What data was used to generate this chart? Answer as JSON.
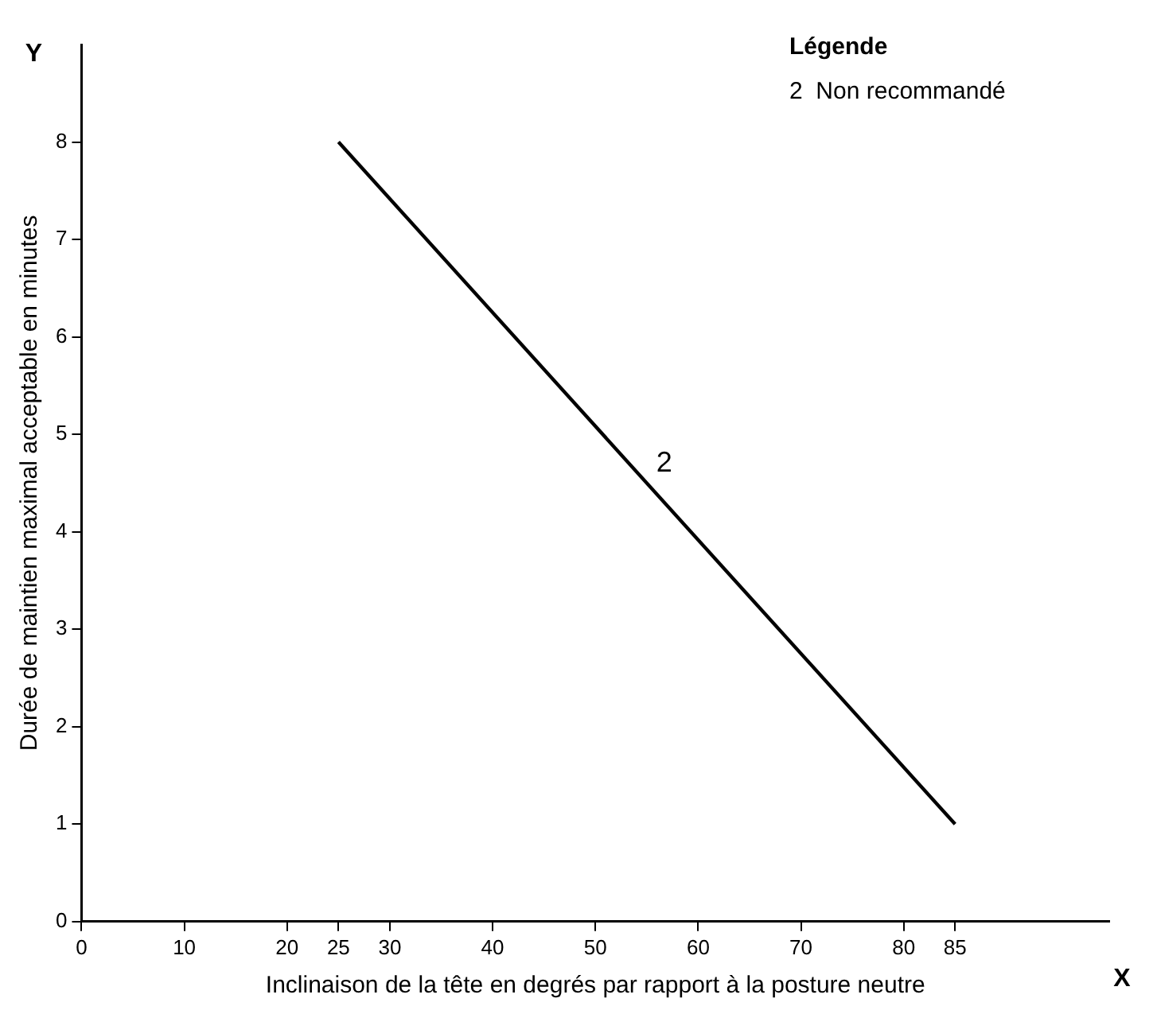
{
  "chart_data": {
    "type": "line",
    "xlabel": "Inclinaison de la tête en degrés par rapport à la posture neutre",
    "ylabel": "Durée de maintien maximal acceptable en minutes",
    "series": [
      {
        "name": "2",
        "color": "#000000",
        "x": [
          25,
          85
        ],
        "values": [
          8,
          1
        ]
      }
    ],
    "xlim": [
      0,
      100
    ],
    "xticks": [
      0,
      10,
      20,
      25,
      30,
      40,
      50,
      60,
      70,
      80,
      85
    ],
    "ylim": [
      0,
      9
    ],
    "yticks": [
      0,
      1,
      2,
      3,
      4,
      5,
      6,
      7,
      8
    ],
    "grid": false,
    "legend": false,
    "marker": "none",
    "line_style": "solid",
    "annotations": [
      "Légende",
      "2  Non recommandé",
      "Y",
      "X"
    ]
  }
}
